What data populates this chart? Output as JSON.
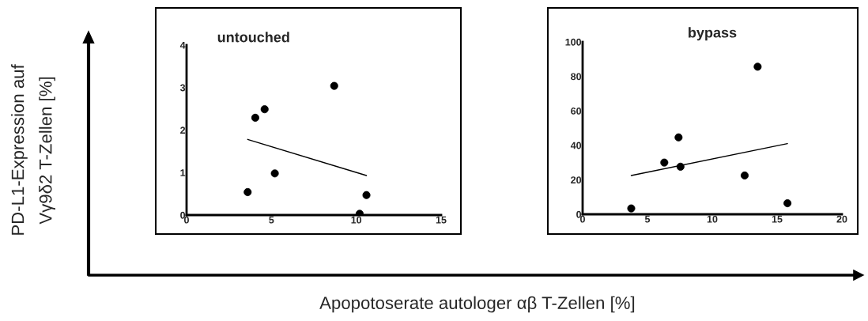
{
  "chart_data": [
    {
      "type": "scatter",
      "title": "untouched",
      "xlabel": "Apopotoserate autologer αβ T-Zellen [%]",
      "ylabel": "PD-L1-Expression auf\nVγ9δ2 T-Zellen [%]",
      "x": [
        3.6,
        4.05,
        4.6,
        5.2,
        8.7,
        10.2,
        10.6
      ],
      "marker": "circle",
      "series": [
        {
          "color": "#000000",
          "values": [
            0.54,
            2.29,
            2.49,
            0.98,
            3.04,
            0.03,
            0.47
          ]
        },
        {
          "type": "line",
          "color": "#000000",
          "x": [
            3.6,
            10.6
          ],
          "values": [
            1.78,
            0.93
          ],
          "marker": "none",
          "line_style": "solid"
        }
      ],
      "xlim": [
        0,
        15
      ],
      "xticks": [
        0,
        5,
        10,
        15
      ],
      "ylim": [
        0,
        4
      ],
      "yticks": [
        0,
        1,
        2,
        3,
        4
      ],
      "grid": false,
      "legend": false
    },
    {
      "type": "scatter",
      "title": "bypass",
      "x": [
        3.75,
        6.3,
        7.4,
        7.55,
        12.5,
        13.5,
        15.8
      ],
      "marker": "circle",
      "series": [
        {
          "color": "#000000",
          "values": [
            3.4,
            30,
            44.6,
            27.6,
            22.5,
            85.6,
            6.4
          ]
        },
        {
          "type": "line",
          "color": "#000000",
          "x": [
            3.75,
            15.8
          ],
          "values": [
            22.5,
            41
          ],
          "marker": "none",
          "line_style": "solid"
        }
      ],
      "xlim": [
        0,
        20
      ],
      "xticks": [
        0,
        5,
        10,
        15,
        20
      ],
      "ylim": [
        0,
        100
      ],
      "yticks": [
        0,
        20,
        40,
        60,
        80,
        100
      ],
      "grid": false,
      "legend": false
    }
  ]
}
